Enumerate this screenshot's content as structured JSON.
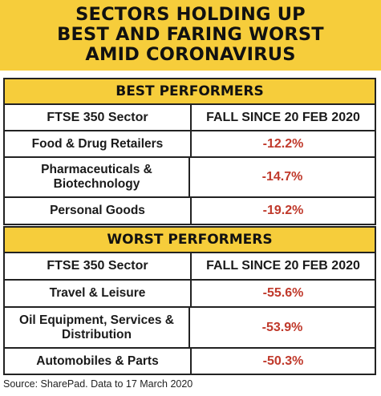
{
  "title_lines": [
    "SECTORS HOLDING UP",
    "BEST AND FARING WORST",
    "AMID CORONAVIRUS"
  ],
  "best": {
    "heading": "BEST PERFORMERS",
    "col_sector": "FTSE 350 Sector",
    "col_fall": "FALL SINCE 20 FEB 2020",
    "rows": [
      {
        "sector": "Food & Drug Retailers",
        "fall": "-12.2%"
      },
      {
        "sector": "Pharmaceuticals & Biotechnology",
        "fall": "-14.7%"
      },
      {
        "sector": "Personal Goods",
        "fall": "-19.2%"
      }
    ]
  },
  "worst": {
    "heading": "WORST PERFORMERS",
    "col_sector": "FTSE 350 Sector",
    "col_fall": "FALL SINCE 20 FEB 2020",
    "rows": [
      {
        "sector": "Travel & Leisure",
        "fall": "-55.6%"
      },
      {
        "sector": "Oil Equipment, Services & Distribution",
        "fall": "-53.9%"
      },
      {
        "sector": "Automobiles & Parts",
        "fall": "-50.3%"
      }
    ]
  },
  "source": "Source: SharePad. Data to 17 March 2020",
  "colors": {
    "accent": "#f6cd3b",
    "negative": "#c0392b"
  }
}
